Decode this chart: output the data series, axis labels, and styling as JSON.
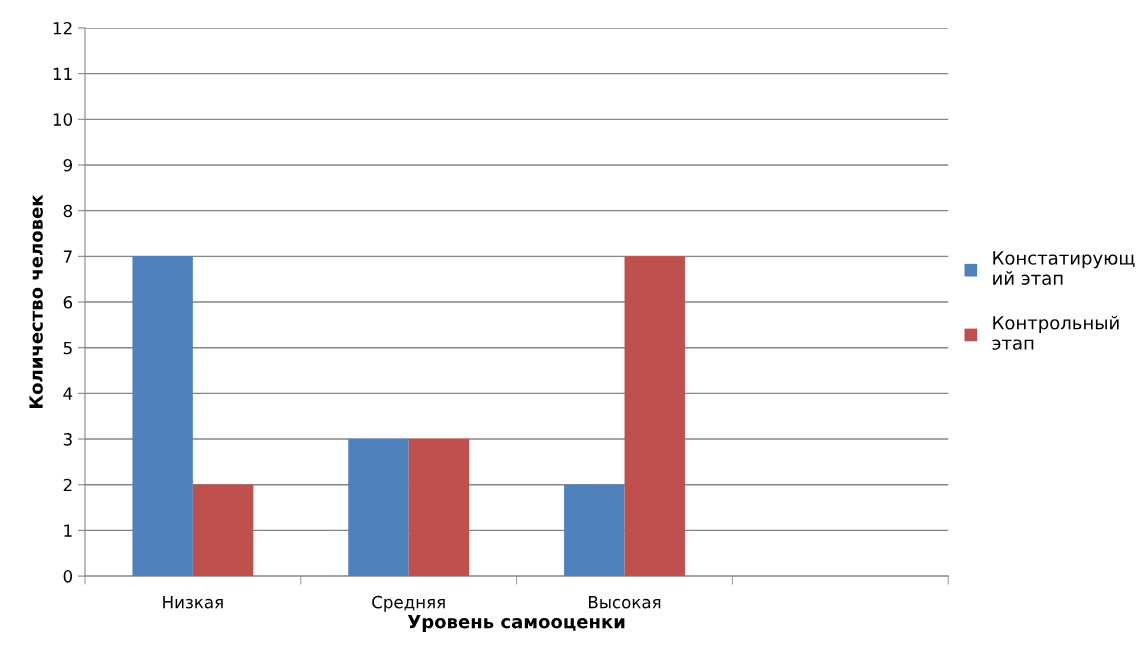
{
  "chart_data": {
    "type": "bar",
    "xlabel": "Уровень самооценки",
    "ylabel": "Количество человек",
    "categories": [
      "Низкая",
      "Средняя",
      "Высокая",
      null
    ],
    "series": [
      {
        "name": "Констатирующий этап",
        "color": "#4f81bd",
        "values": [
          7,
          3,
          2,
          null
        ]
      },
      {
        "name": "Контрольный этап",
        "color": "#c0504d",
        "values": [
          2,
          3,
          7,
          null
        ]
      }
    ],
    "ylim": [
      0,
      12
    ],
    "yticks": [
      0,
      1,
      2,
      3,
      4,
      5,
      6,
      7,
      8,
      9,
      10,
      11,
      12
    ],
    "grid": "y",
    "legend": "right"
  }
}
